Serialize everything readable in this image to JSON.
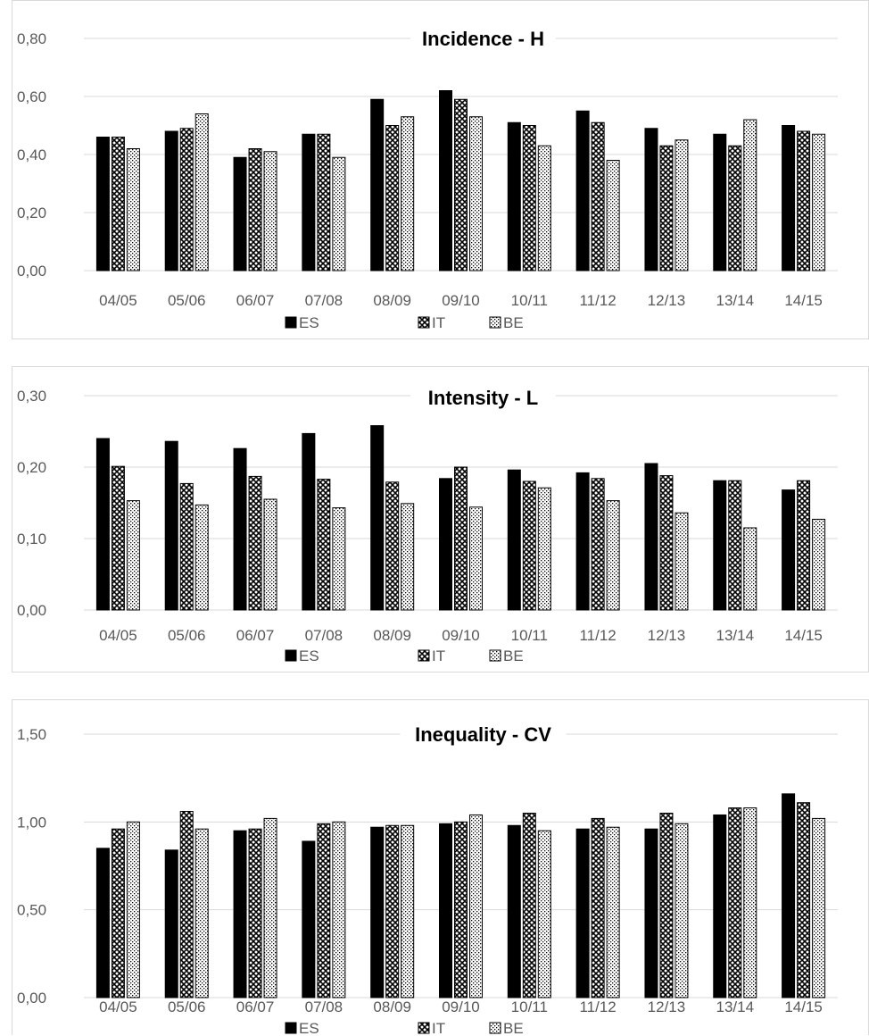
{
  "charts": {
    "chart_data": [
      {
        "type": "bar",
        "title": "Incidence - H",
        "categories": [
          "04/05",
          "05/06",
          "06/07",
          "07/08",
          "08/09",
          "09/10",
          "10/11",
          "11/12",
          "12/13",
          "13/14",
          "14/15"
        ],
        "series": [
          {
            "name": "ES",
            "values": [
              0.46,
              0.48,
              0.39,
              0.47,
              0.59,
              0.62,
              0.51,
              0.55,
              0.49,
              0.47,
              0.5
            ]
          },
          {
            "name": "IT",
            "values": [
              0.46,
              0.49,
              0.42,
              0.47,
              0.5,
              0.59,
              0.5,
              0.51,
              0.43,
              0.43,
              0.48
            ]
          },
          {
            "name": "BE",
            "values": [
              0.42,
              0.54,
              0.41,
              0.39,
              0.53,
              0.53,
              0.43,
              0.38,
              0.45,
              0.52,
              0.47
            ]
          }
        ],
        "yticks": [
          "0,00",
          "0,20",
          "0,40",
          "0,60",
          "0,80"
        ],
        "ylim": [
          0,
          0.8
        ],
        "grid": true,
        "legend": "bottom"
      },
      {
        "type": "bar",
        "title": "Intensity - L",
        "categories": [
          "04/05",
          "05/06",
          "06/07",
          "07/08",
          "08/09",
          "09/10",
          "10/11",
          "11/12",
          "12/13",
          "13/14",
          "14/15"
        ],
        "series": [
          {
            "name": "ES",
            "values": [
              0.24,
              0.236,
              0.226,
              0.247,
              0.258,
              0.184,
              0.196,
              0.192,
              0.205,
              0.181,
              0.168
            ]
          },
          {
            "name": "IT",
            "values": [
              0.201,
              0.177,
              0.187,
              0.183,
              0.179,
              0.2,
              0.18,
              0.184,
              0.188,
              0.181,
              0.181
            ]
          },
          {
            "name": "BE",
            "values": [
              0.153,
              0.147,
              0.155,
              0.143,
              0.149,
              0.144,
              0.171,
              0.153,
              0.136,
              0.115,
              0.127
            ]
          }
        ],
        "yticks": [
          "0,00",
          "0,10",
          "0,20",
          "0,30"
        ],
        "ylim": [
          0,
          0.3
        ],
        "grid": true,
        "legend": "bottom"
      },
      {
        "type": "bar",
        "title": "Inequality - CV",
        "categories": [
          "04/05",
          "05/06",
          "06/07",
          "07/08",
          "08/09",
          "09/10",
          "10/11",
          "11/12",
          "12/13",
          "13/14",
          "14/15"
        ],
        "series": [
          {
            "name": "ES",
            "values": [
              0.85,
              0.84,
              0.95,
              0.89,
              0.97,
              0.99,
              0.98,
              0.96,
              0.96,
              1.04,
              1.16
            ]
          },
          {
            "name": "IT",
            "values": [
              0.96,
              1.06,
              0.96,
              0.99,
              0.98,
              1.0,
              1.05,
              1.02,
              1.05,
              1.08,
              1.11
            ]
          },
          {
            "name": "BE",
            "values": [
              1.0,
              0.96,
              1.02,
              1.0,
              0.98,
              1.04,
              0.95,
              0.97,
              0.99,
              1.08,
              1.02
            ]
          }
        ],
        "yticks": [
          "0,00",
          "0,50",
          "1,00",
          "1,50"
        ],
        "ylim": [
          0,
          1.5
        ],
        "grid": true,
        "legend": "bottom"
      }
    ]
  },
  "styles": {
    "ES": "#000000",
    "IT": "crosshatch",
    "BE": "dotted"
  }
}
